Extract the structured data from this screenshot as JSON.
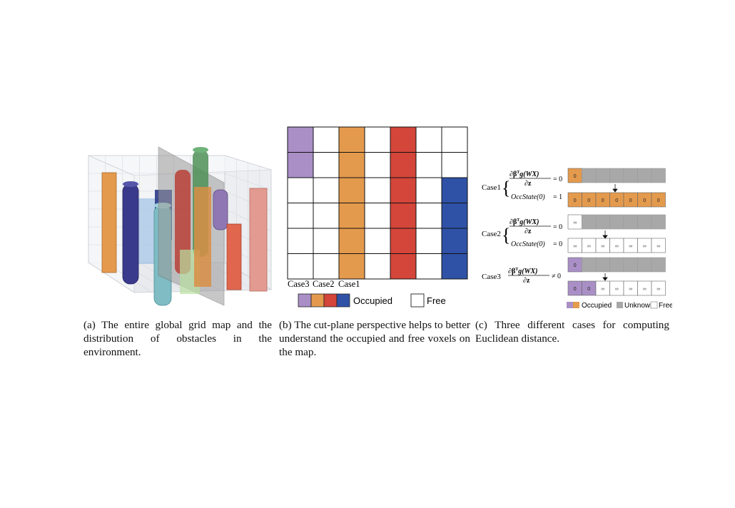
{
  "colors": {
    "purple": "#a98fc6",
    "orange": "#e49a4d",
    "red": "#d4453a",
    "blue": "#2f52a7",
    "gray": "#a8a8a8",
    "green": "#4f9158",
    "teal": "#7fbcc4",
    "salmon": "#e39a90",
    "lightblue": "#a5c6e6"
  },
  "panel_b": {
    "grid": [
      [
        "purple",
        "free",
        "orange",
        "free",
        "red",
        "free",
        "free"
      ],
      [
        "purple",
        "free",
        "orange",
        "free",
        "red",
        "free",
        "free"
      ],
      [
        "free",
        "free",
        "orange",
        "free",
        "red",
        "free",
        "blue"
      ],
      [
        "free",
        "free",
        "orange",
        "free",
        "red",
        "free",
        "blue"
      ],
      [
        "free",
        "free",
        "orange",
        "free",
        "red",
        "free",
        "blue"
      ],
      [
        "free",
        "free",
        "orange",
        "free",
        "red",
        "free",
        "blue"
      ]
    ],
    "case_labels": [
      "Case3",
      "Case2",
      "Case1"
    ],
    "legend": {
      "occupied": "Occupied",
      "free": "Free"
    }
  },
  "panel_c": {
    "case1": {
      "label": "Case1",
      "eq1_numer": "∂β",
      "eq1_sup": "T",
      "eq1_tail": "g(WX)",
      "eq1_denom": "∂z",
      "eq1_rel": "= 0",
      "eq2_lhs": "OccState(0)",
      "eq2_rel": "= 1",
      "top_cells": [
        "0",
        "",
        "",
        "",
        "",
        "",
        ""
      ],
      "bottom_cells": [
        "0",
        "0",
        "0",
        "0",
        "0",
        "0",
        "0"
      ]
    },
    "case2": {
      "label": "Case2",
      "eq1_numer": "∂β",
      "eq1_sup": "T",
      "eq1_tail": "g(WX)",
      "eq1_denom": "∂z",
      "eq1_rel": "= 0",
      "eq2_lhs": "OccState(0)",
      "eq2_rel": "= 0",
      "top_cells": [
        "∞",
        "",
        "",
        "",
        "",
        "",
        ""
      ],
      "bottom_cells": [
        "∞",
        "∞",
        "∞",
        "∞",
        "∞",
        "∞",
        "∞"
      ]
    },
    "case3": {
      "label": "Case3",
      "eq1_numer": "∂β",
      "eq1_sup": "T",
      "eq1_tail": "g(WX)",
      "eq1_denom": "∂z",
      "eq1_rel": "≠ 0",
      "top_cells": [
        "0",
        "",
        "",
        "",
        "",
        "",
        ""
      ],
      "bottom_cells": [
        "0",
        "0",
        "∞",
        "∞",
        "∞",
        "∞",
        "∞"
      ]
    },
    "legend": {
      "occupied": "Occupied",
      "unknown": "Unknown",
      "free": "Free"
    }
  },
  "captions": {
    "a": "(a) The entire global grid map and the distribution of obstacles in the environment.",
    "b": "(b) The cut-plane perspective helps to better understand the occupied and free voxels on the map.",
    "c": "(c) Three different cases for computing Euclidean distance."
  }
}
